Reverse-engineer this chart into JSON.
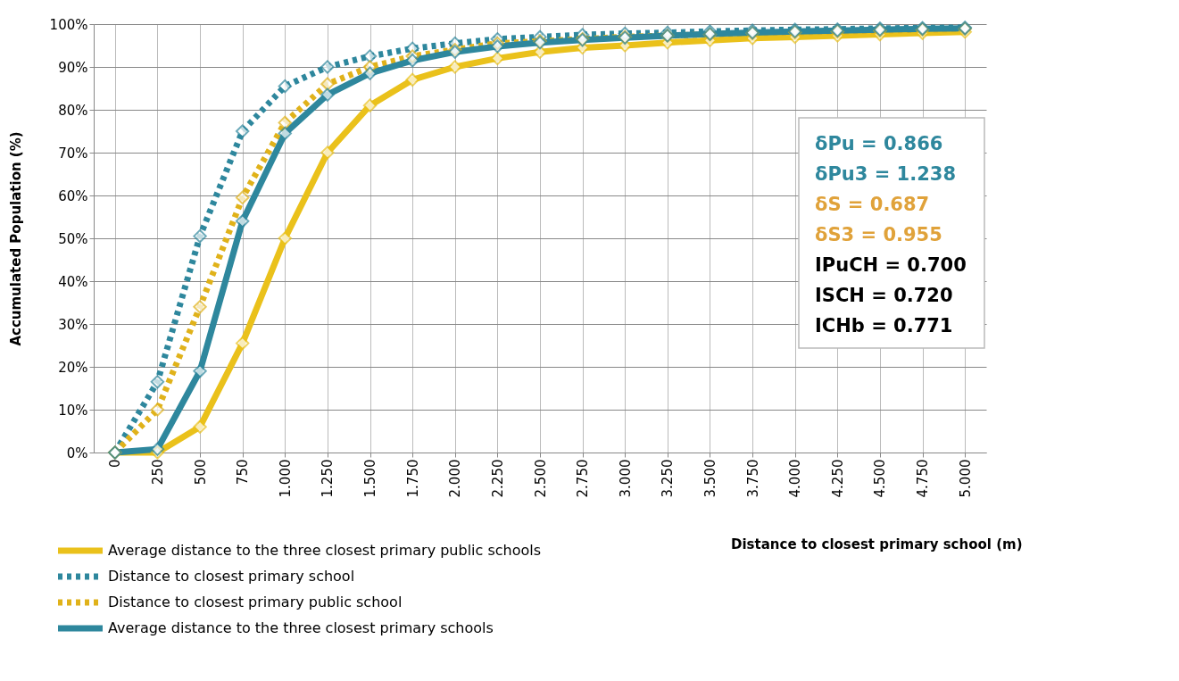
{
  "chart_data": {
    "type": "line",
    "xlabel": "Distance to closest primary school (m)",
    "ylabel": "Accumulated Population (%)",
    "categories": [
      "0",
      "250",
      "500",
      "750",
      "1.000",
      "1.250",
      "1.500",
      "1.750",
      "2.000",
      "2.250",
      "2.500",
      "2.750",
      "3.000",
      "3.250",
      "3.500",
      "3.750",
      "4.000",
      "4.250",
      "4.500",
      "4.750",
      "5.000"
    ],
    "series": [
      {
        "name": "Average distance to the three closest primary public schools",
        "color": "#eac11b",
        "line_style": "solid",
        "values": [
          0,
          0,
          6,
          25.5,
          50,
          70,
          81,
          87,
          90,
          92,
          93.5,
          94.5,
          95,
          95.7,
          96.2,
          96.7,
          97,
          97.3,
          97.6,
          97.9,
          98.2
        ]
      },
      {
        "name": "Distance to closest primary school",
        "color": "#2e879d",
        "line_style": "dotted",
        "values": [
          0,
          16.5,
          50.5,
          75,
          85.5,
          90,
          92.5,
          94.3,
          95.5,
          96.5,
          97,
          97.5,
          97.8,
          98,
          98.3,
          98.5,
          98.7,
          98.8,
          99,
          99.1,
          99.2
        ]
      },
      {
        "name": "Distance to closest primary public school",
        "color": "#e0b21a",
        "line_style": "dotted",
        "values": [
          0,
          10,
          34,
          59.5,
          77,
          86,
          90,
          92.5,
          94,
          95.5,
          96,
          96.5,
          97,
          97.3,
          97.6,
          97.9,
          98.1,
          98.3,
          98.5,
          98.7,
          98.9
        ]
      },
      {
        "name": "Average distance to the three closest primary schools",
        "color": "#2e879d",
        "line_style": "solid",
        "values": [
          0,
          0.8,
          19,
          54,
          74.5,
          83.5,
          88.5,
          91.5,
          93.5,
          94.8,
          95.7,
          96.3,
          96.8,
          97.3,
          97.7,
          98,
          98.3,
          98.5,
          98.7,
          98.9,
          99
        ]
      }
    ],
    "ylim": [
      0,
      100
    ],
    "yticks": [
      {
        "value": 0,
        "label": "0%"
      },
      {
        "value": 10,
        "label": "10%"
      },
      {
        "value": 20,
        "label": "20%"
      },
      {
        "value": 30,
        "label": "30%"
      },
      {
        "value": 40,
        "label": "40%"
      },
      {
        "value": 50,
        "label": "50%"
      },
      {
        "value": 60,
        "label": "60%"
      },
      {
        "value": 70,
        "label": "70%"
      },
      {
        "value": 80,
        "label": "80%"
      },
      {
        "value": 90,
        "label": "90%"
      },
      {
        "value": 100,
        "label": "100%"
      }
    ],
    "grid": true,
    "legend": "bottom left",
    "marker": "diamond",
    "annotations": [
      "δPu = 0.866",
      "δPu3 = 1.238",
      "δS = 0.687",
      "δS3 = 0.955",
      "IPuCH = 0.700",
      "ISCH = 0.720",
      "ICHb = 0.771"
    ]
  }
}
